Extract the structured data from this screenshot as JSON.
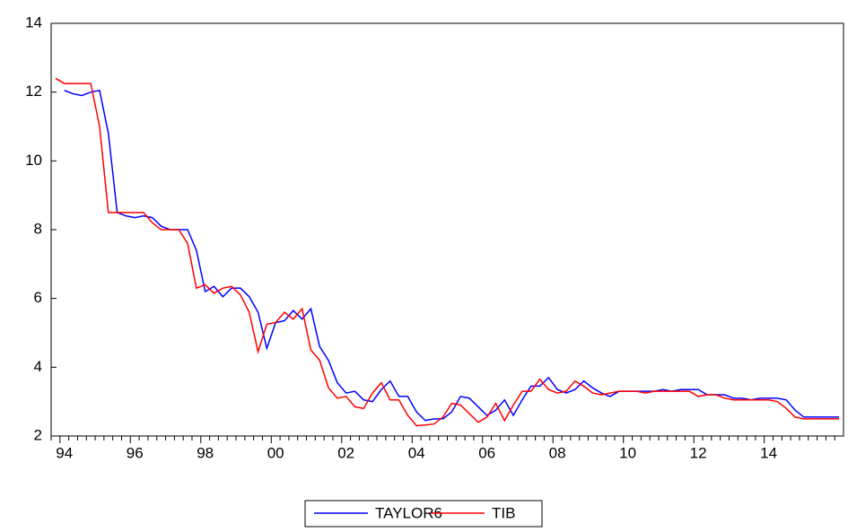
{
  "chart_data": {
    "type": "line",
    "categories": [
      null,
      "94",
      null,
      null,
      null,
      null,
      null,
      null,
      null,
      "96",
      null,
      null,
      null,
      null,
      null,
      null,
      null,
      "98",
      null,
      null,
      null,
      null,
      null,
      null,
      null,
      "00",
      null,
      null,
      null,
      null,
      null,
      null,
      null,
      "02",
      null,
      null,
      null,
      null,
      null,
      null,
      null,
      "04",
      null,
      null,
      null,
      null,
      null,
      null,
      null,
      "06",
      null,
      null,
      null,
      null,
      null,
      null,
      null,
      "08",
      null,
      null,
      null,
      null,
      null,
      null,
      null,
      "10",
      null,
      null,
      null,
      null,
      null,
      null,
      null,
      "12",
      null,
      null,
      null,
      null,
      null,
      null,
      null,
      "14",
      null,
      null,
      null,
      null,
      null,
      null,
      null,
      null
    ],
    "series": [
      {
        "name": "TAYLOR6",
        "color": "#0000ff",
        "values": [
          null,
          12.05,
          11.95,
          11.9,
          12.0,
          12.05,
          10.8,
          8.5,
          8.4,
          8.35,
          8.4,
          8.35,
          8.1,
          8.0,
          8.0,
          8.0,
          7.4,
          6.2,
          6.35,
          6.05,
          6.3,
          6.3,
          6.05,
          5.6,
          4.55,
          5.3,
          5.35,
          5.65,
          5.4,
          5.7,
          4.6,
          4.2,
          3.55,
          3.25,
          3.3,
          3.05,
          3.0,
          3.35,
          3.6,
          3.15,
          3.15,
          2.7,
          2.45,
          2.5,
          2.5,
          2.7,
          3.15,
          3.1,
          2.85,
          2.6,
          2.75,
          3.05,
          2.6,
          3.05,
          3.45,
          3.45,
          3.7,
          3.35,
          3.25,
          3.35,
          3.6,
          3.4,
          3.25,
          3.15,
          3.3,
          3.3,
          3.3,
          3.3,
          3.3,
          3.35,
          3.3,
          3.35,
          3.35,
          3.35,
          3.2,
          3.2,
          3.2,
          3.1,
          3.1,
          3.05,
          3.1,
          3.1,
          3.1,
          3.05,
          2.75,
          2.55,
          2.55,
          2.55,
          2.55,
          2.55
        ]
      },
      {
        "name": "TIB",
        "color": "#ff0000",
        "values": [
          12.4,
          12.25,
          12.25,
          12.25,
          12.25,
          11.0,
          8.5,
          8.5,
          8.5,
          8.5,
          8.5,
          8.2,
          8.0,
          8.0,
          8.0,
          7.6,
          6.3,
          6.4,
          6.15,
          6.3,
          6.35,
          6.1,
          5.6,
          4.45,
          5.25,
          5.3,
          5.6,
          5.4,
          5.7,
          4.5,
          4.2,
          3.4,
          3.1,
          3.15,
          2.85,
          2.8,
          3.25,
          3.55,
          3.05,
          3.05,
          2.6,
          2.3,
          2.32,
          2.35,
          2.55,
          2.95,
          2.9,
          2.65,
          2.4,
          2.55,
          2.95,
          2.45,
          2.9,
          3.3,
          3.3,
          3.65,
          3.35,
          3.25,
          3.3,
          3.6,
          3.45,
          3.25,
          3.2,
          3.25,
          3.3,
          3.3,
          3.3,
          3.25,
          3.3,
          3.3,
          3.3,
          3.3,
          3.3,
          3.15,
          3.2,
          3.2,
          3.1,
          3.05,
          3.05,
          3.05,
          3.05,
          3.05,
          3.0,
          2.8,
          2.55,
          2.5,
          2.5,
          2.5,
          2.5,
          2.5
        ]
      }
    ],
    "ylim": [
      2,
      14
    ],
    "yticks": [
      2,
      4,
      6,
      8,
      10,
      12,
      14
    ]
  }
}
